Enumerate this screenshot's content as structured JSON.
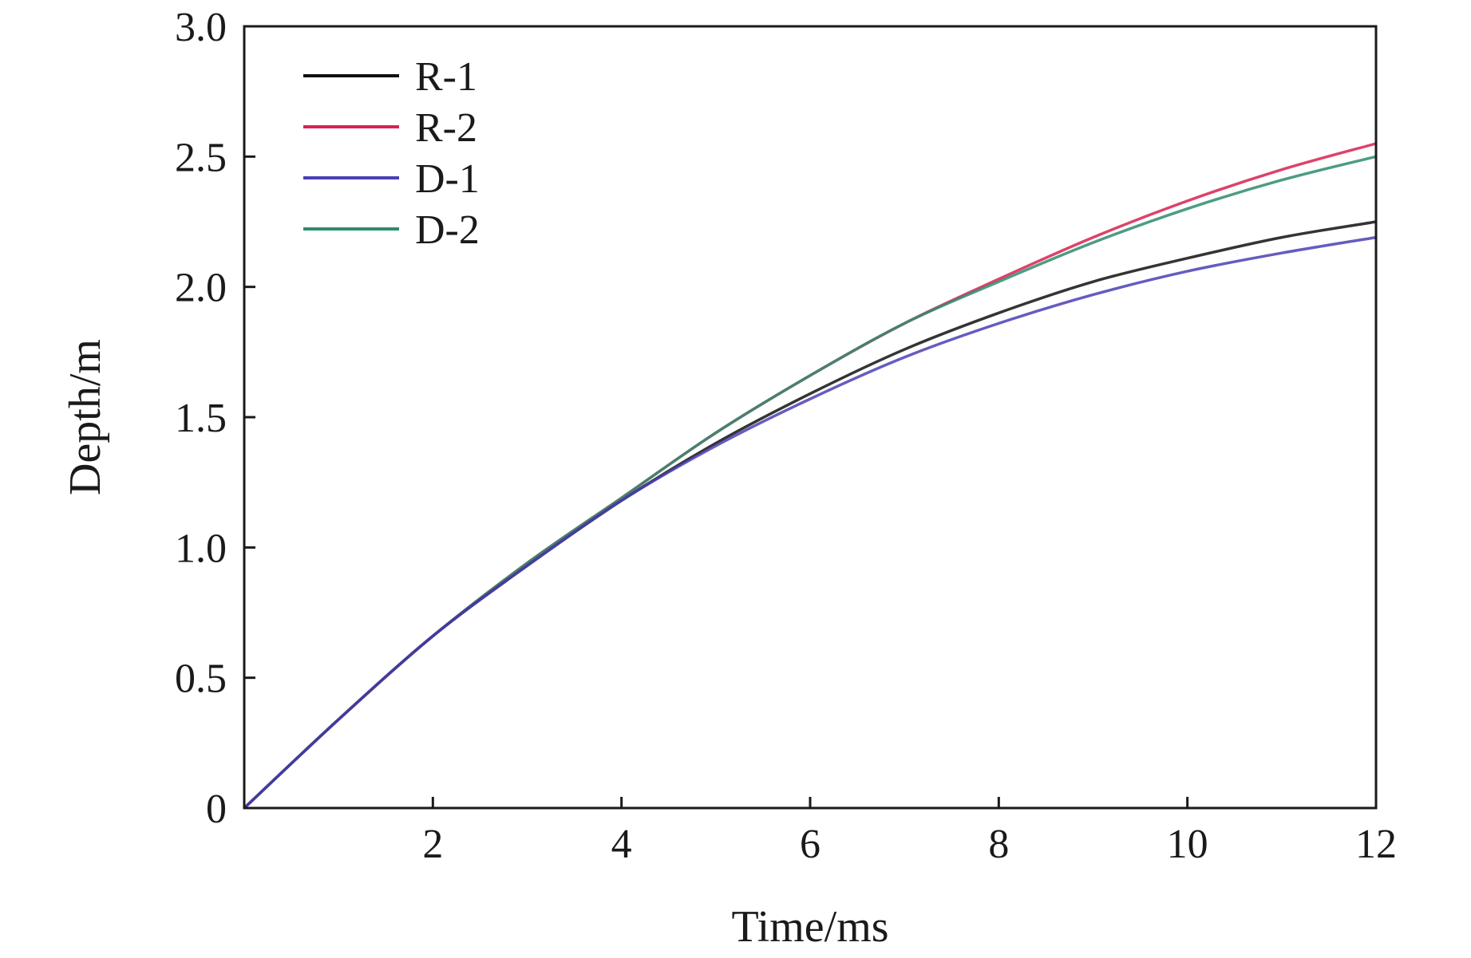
{
  "chart_data": {
    "type": "line",
    "xlabel": "Time/ms",
    "ylabel": "Depth/m",
    "xlim": [
      0,
      12
    ],
    "ylim": [
      0,
      3.0
    ],
    "x_ticks": [
      2,
      4,
      6,
      8,
      10,
      12
    ],
    "x_tick_labels": [
      "2",
      "4",
      "6",
      "8",
      "10",
      "12"
    ],
    "y_ticks": [
      0,
      0.5,
      1.0,
      1.5,
      2.0,
      2.5,
      3.0
    ],
    "y_tick_labels": [
      "0",
      "0.5",
      "1.0",
      "1.5",
      "2.0",
      "2.5",
      "3.0"
    ],
    "grid": false,
    "legend_position": "top-left",
    "series": [
      {
        "name": "R-1",
        "color": "#111111",
        "x": [
          0,
          1,
          2,
          3,
          4,
          5,
          6,
          7,
          8,
          9,
          10,
          11,
          12
        ],
        "y": [
          0,
          0.34,
          0.66,
          0.93,
          1.18,
          1.4,
          1.59,
          1.76,
          1.9,
          2.02,
          2.11,
          2.19,
          2.25
        ]
      },
      {
        "name": "R-2",
        "color": "#d6224f",
        "x": [
          0,
          1,
          2,
          3,
          4,
          5,
          6,
          7,
          8,
          9,
          10,
          11,
          12
        ],
        "y": [
          0,
          0.34,
          0.66,
          0.94,
          1.19,
          1.44,
          1.66,
          1.86,
          2.03,
          2.19,
          2.33,
          2.45,
          2.55
        ]
      },
      {
        "name": "D-1",
        "color": "#4a3fb5",
        "x": [
          0,
          1,
          2,
          3,
          4,
          5,
          6,
          7,
          8,
          9,
          10,
          11,
          12
        ],
        "y": [
          0,
          0.34,
          0.66,
          0.93,
          1.18,
          1.39,
          1.57,
          1.73,
          1.86,
          1.97,
          2.06,
          2.13,
          2.19
        ]
      },
      {
        "name": "D-2",
        "color": "#2e8b6f",
        "x": [
          0,
          1,
          2,
          3,
          4,
          5,
          6,
          7,
          8,
          9,
          10,
          11,
          12
        ],
        "y": [
          0,
          0.34,
          0.66,
          0.94,
          1.19,
          1.44,
          1.66,
          1.86,
          2.02,
          2.17,
          2.3,
          2.41,
          2.5
        ]
      }
    ]
  }
}
